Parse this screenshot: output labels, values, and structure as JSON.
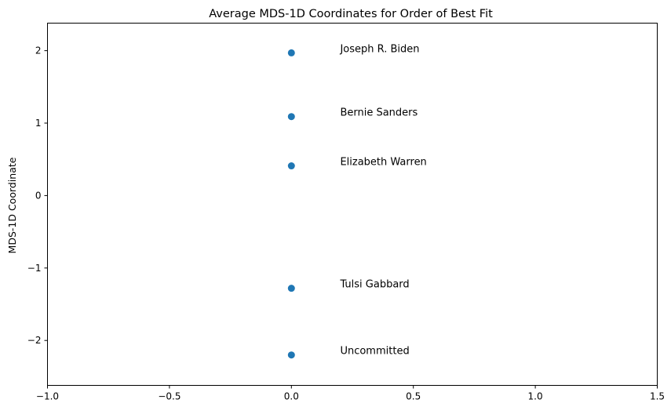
{
  "chart_data": {
    "type": "scatter",
    "title": "Average MDS-1D Coordinates for Order of Best Fit",
    "xlabel": "",
    "ylabel": "MDS-1D Coordinate",
    "xlim": [
      -1.0,
      1.5
    ],
    "ylim": [
      -2.62,
      2.38
    ],
    "xticks": [
      -1.0,
      -0.5,
      0.0,
      0.5,
      1.0,
      1.5
    ],
    "xtick_labels": [
      "−1.0",
      "−0.5",
      "0.0",
      "0.5",
      "1.0",
      "1.5"
    ],
    "yticks": [
      -2,
      -1,
      0,
      1,
      2
    ],
    "ytick_labels": [
      "−2",
      "−1",
      "0",
      "1",
      "2"
    ],
    "grid": false,
    "marker_color": "#1f77b4",
    "points": [
      {
        "label": "Joseph R. Biden",
        "x": 0.0,
        "y": 1.97
      },
      {
        "label": "Bernie Sanders",
        "x": 0.0,
        "y": 1.09
      },
      {
        "label": "Elizabeth Warren",
        "x": 0.0,
        "y": 0.41
      },
      {
        "label": "Tulsi Gabbard",
        "x": 0.0,
        "y": -1.28
      },
      {
        "label": "Uncommitted",
        "x": 0.0,
        "y": -2.2
      }
    ],
    "annotation_offset_x": 0.2
  }
}
